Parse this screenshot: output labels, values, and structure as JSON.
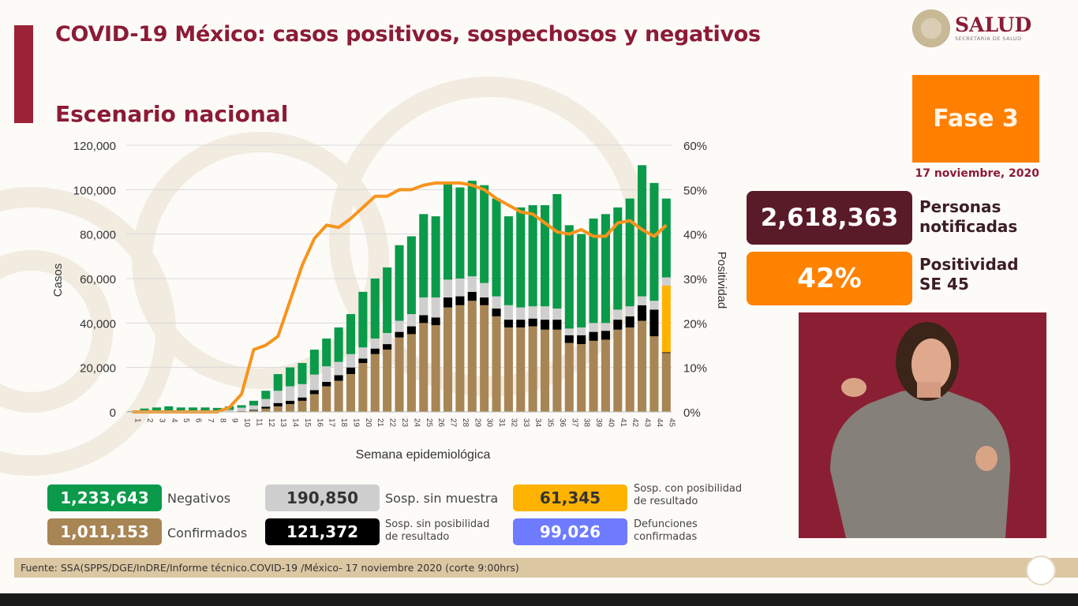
{
  "header": {
    "title": "COVID-19 México: casos positivos, sospechosos y negativos",
    "subtitle": "Escenario nacional",
    "logo_main": "SALUD",
    "logo_sub": "SECRETARÍA DE SALUD"
  },
  "side": {
    "phase": "Fase 3",
    "date": "17 noviembre, 2020",
    "notified_value": "2,618,363",
    "notified_label_1": "Personas",
    "notified_label_2": "notificadas",
    "positivity_value": "42%",
    "positivity_label_1": "Positividad",
    "positivity_label_2": "SE 45"
  },
  "legend": [
    {
      "value": "1,233,643",
      "label": "Negativos",
      "color": "#0a9a4a"
    },
    {
      "value": "1,011,153",
      "label": "Confirmados",
      "color": "#a88555"
    },
    {
      "value": "190,850",
      "label": "Sosp. sin muestra",
      "color": "#cfcfcf"
    },
    {
      "value": "121,372",
      "label_1": "Sosp. sin posibilidad",
      "label_2": "de resultado",
      "color": "#000000"
    },
    {
      "value": "61,345",
      "label_1": "Sosp. con posibilidad",
      "label_2": "de resultado",
      "color": "#ffb300"
    },
    {
      "value": "99,026",
      "label_1": "Defunciones",
      "label_2": "confirmadas",
      "color": "#6f7bff"
    }
  ],
  "footer": {
    "source": "Fuente: SSA(SPPS/DGE/InDRE/Informe técnico.COVID-19 /México- 17 noviembre 2020 (corte 9:00hrs)"
  },
  "chart_data": {
    "type": "bar",
    "stacked": true,
    "xlabel": "Semana epidemiológica",
    "ylabel": "Casos",
    "y2label": "Positividad",
    "ylim": [
      0,
      120000
    ],
    "y2lim": [
      0,
      60
    ],
    "yticks": [
      "0",
      "20,000",
      "40,000",
      "60,000",
      "80,000",
      "100,000",
      "120,000"
    ],
    "y2ticks": [
      "0%",
      "10%",
      "20%",
      "30%",
      "40%",
      "50%",
      "60%"
    ],
    "grid": true,
    "categories": [
      "1",
      "2",
      "3",
      "4",
      "5",
      "6",
      "7",
      "8",
      "9",
      "10",
      "11",
      "12",
      "13",
      "14",
      "15",
      "16",
      "17",
      "18",
      "19",
      "20",
      "21",
      "22",
      "23",
      "24",
      "25",
      "26",
      "27",
      "28",
      "29",
      "30",
      "31",
      "32",
      "33",
      "34",
      "35",
      "36",
      "37",
      "38",
      "39",
      "40",
      "41",
      "42",
      "43",
      "44",
      "45"
    ],
    "series": [
      {
        "name": "Confirmados",
        "color": "#a88555",
        "values": [
          0,
          0,
          0,
          0,
          0,
          0,
          0,
          0,
          50,
          300,
          600,
          1500,
          2500,
          3500,
          5000,
          8000,
          11500,
          14000,
          17000,
          22000,
          26000,
          28000,
          33500,
          35000,
          40000,
          39000,
          47000,
          48000,
          50000,
          48000,
          43000,
          38000,
          38000,
          38500,
          37000,
          37000,
          31000,
          30500,
          32000,
          32500,
          37000,
          38000,
          41000,
          34000,
          26500
        ]
      },
      {
        "name": "Sosp. sin posibilidad de resultado",
        "color": "#000000",
        "values": [
          0,
          0,
          0,
          0,
          0,
          0,
          0,
          0,
          50,
          100,
          300,
          800,
          1500,
          1500,
          1500,
          1800,
          2000,
          2500,
          3000,
          2000,
          2500,
          2500,
          2500,
          3500,
          3500,
          3500,
          4500,
          4000,
          4000,
          3500,
          3500,
          3500,
          3500,
          3500,
          4500,
          4500,
          3500,
          4000,
          4000,
          4000,
          4500,
          5000,
          7000,
          12000,
          300
        ]
      },
      {
        "name": "Sosp. con posibilidad de resultado",
        "color": "#ffb300",
        "values": [
          0,
          0,
          0,
          0,
          0,
          0,
          0,
          0,
          0,
          0,
          0,
          0,
          0,
          0,
          0,
          0,
          0,
          0,
          0,
          0,
          0,
          0,
          0,
          0,
          0,
          0,
          0,
          0,
          0,
          0,
          0,
          0,
          0,
          0,
          0,
          0,
          0,
          0,
          0,
          0,
          0,
          0,
          0,
          0,
          30000
        ]
      },
      {
        "name": "Sosp. sin muestra",
        "color": "#cfcfcf",
        "values": [
          100,
          200,
          200,
          300,
          200,
          200,
          200,
          200,
          800,
          1500,
          2000,
          3500,
          5500,
          6500,
          6000,
          7000,
          7000,
          6000,
          6000,
          5000,
          4500,
          5000,
          5000,
          5500,
          8000,
          9000,
          8000,
          8000,
          7000,
          6500,
          5500,
          6500,
          5500,
          5500,
          6000,
          5000,
          3000,
          3500,
          4000,
          3500,
          4500,
          4500,
          4000,
          4000,
          3700
        ]
      },
      {
        "name": "Negativos",
        "color": "#0a9a4a",
        "values": [
          200,
          1300,
          1800,
          2200,
          1800,
          1800,
          1800,
          1600,
          1600,
          1100,
          2100,
          3700,
          7500,
          8500,
          9500,
          11200,
          12500,
          15500,
          18000,
          25000,
          27000,
          29500,
          34000,
          35000,
          37500,
          36500,
          43500,
          41000,
          43000,
          44000,
          44000,
          40000,
          45000,
          45500,
          45500,
          51500,
          46500,
          42000,
          47000,
          49000,
          46000,
          48500,
          59000,
          53000,
          35500
        ]
      }
    ],
    "line": {
      "name": "Positividad",
      "color": "#f7941d",
      "axis": "right",
      "values": [
        0,
        0,
        0,
        0,
        0,
        0,
        0,
        0,
        1,
        4,
        14,
        15,
        17,
        25,
        33,
        39,
        42,
        41.5,
        43.5,
        46,
        48.5,
        48.5,
        50,
        50,
        51,
        51.5,
        51.5,
        51.5,
        51,
        50,
        48,
        46.5,
        45,
        44.5,
        42.5,
        40.5,
        40,
        41,
        39.5,
        39.5,
        42.5,
        43,
        41,
        39.5,
        42
      ]
    }
  }
}
